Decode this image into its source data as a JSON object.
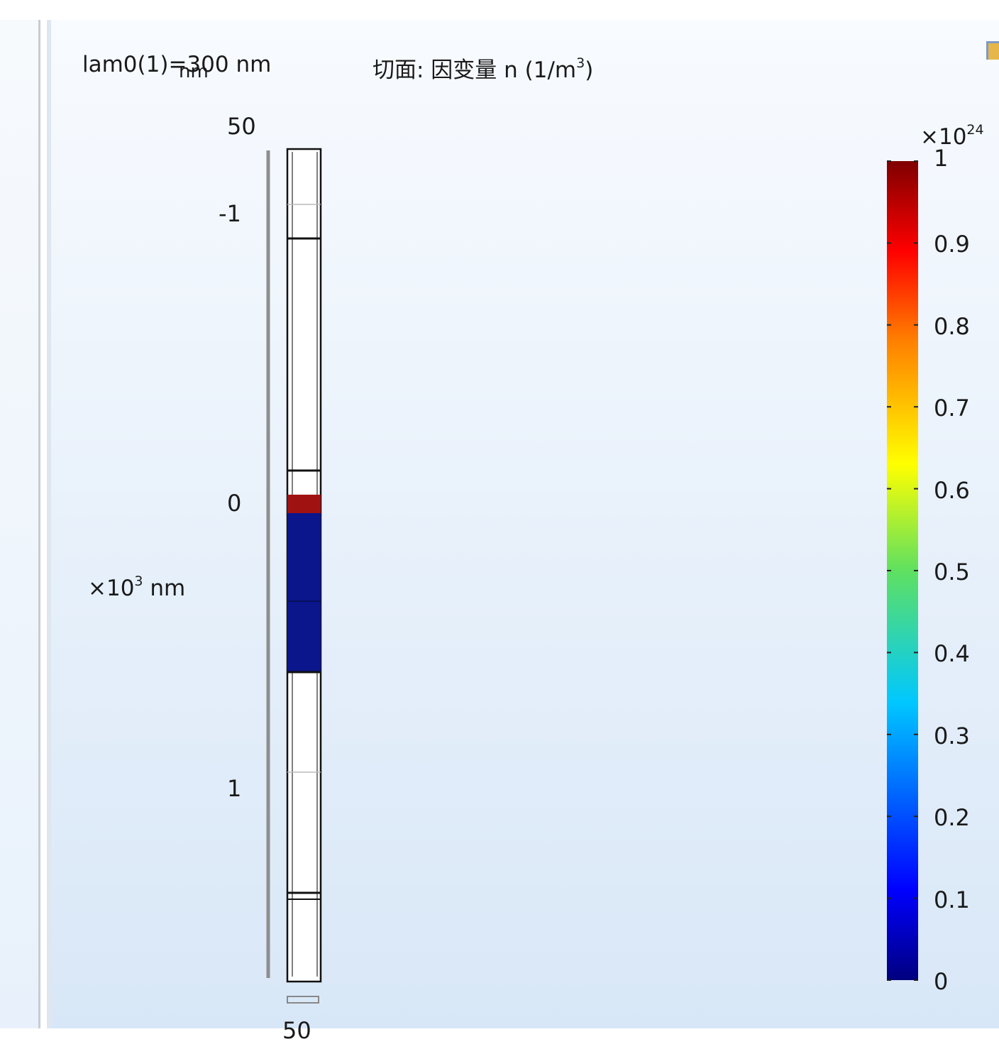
{
  "plot": {
    "parameter_label": "lam0(1)=300 nm",
    "axis_unit_overlay": "nm",
    "title_prefix": "切面: 因变量 n (1/m",
    "title_exp": "3",
    "title_suffix": ")",
    "axis_scale_base": "×10",
    "axis_scale_exp": "3",
    "axis_scale_unit": " nm",
    "axis_ticks": [
      "50",
      "-1",
      "0",
      "1",
      "50"
    ]
  },
  "colorbar": {
    "scale_base": "×10",
    "scale_exp": "24",
    "min": 0,
    "max": 1,
    "ticks": [
      "1",
      "0.9",
      "0.8",
      "0.7",
      "0.6",
      "0.5",
      "0.4",
      "0.3",
      "0.2",
      "0.1",
      "0"
    ],
    "colormap": "rainbow (jet)"
  },
  "geometry": {
    "colors": {
      "high_density": "#a01212",
      "low_density": "#0b158c",
      "outline": "#111111"
    }
  }
}
